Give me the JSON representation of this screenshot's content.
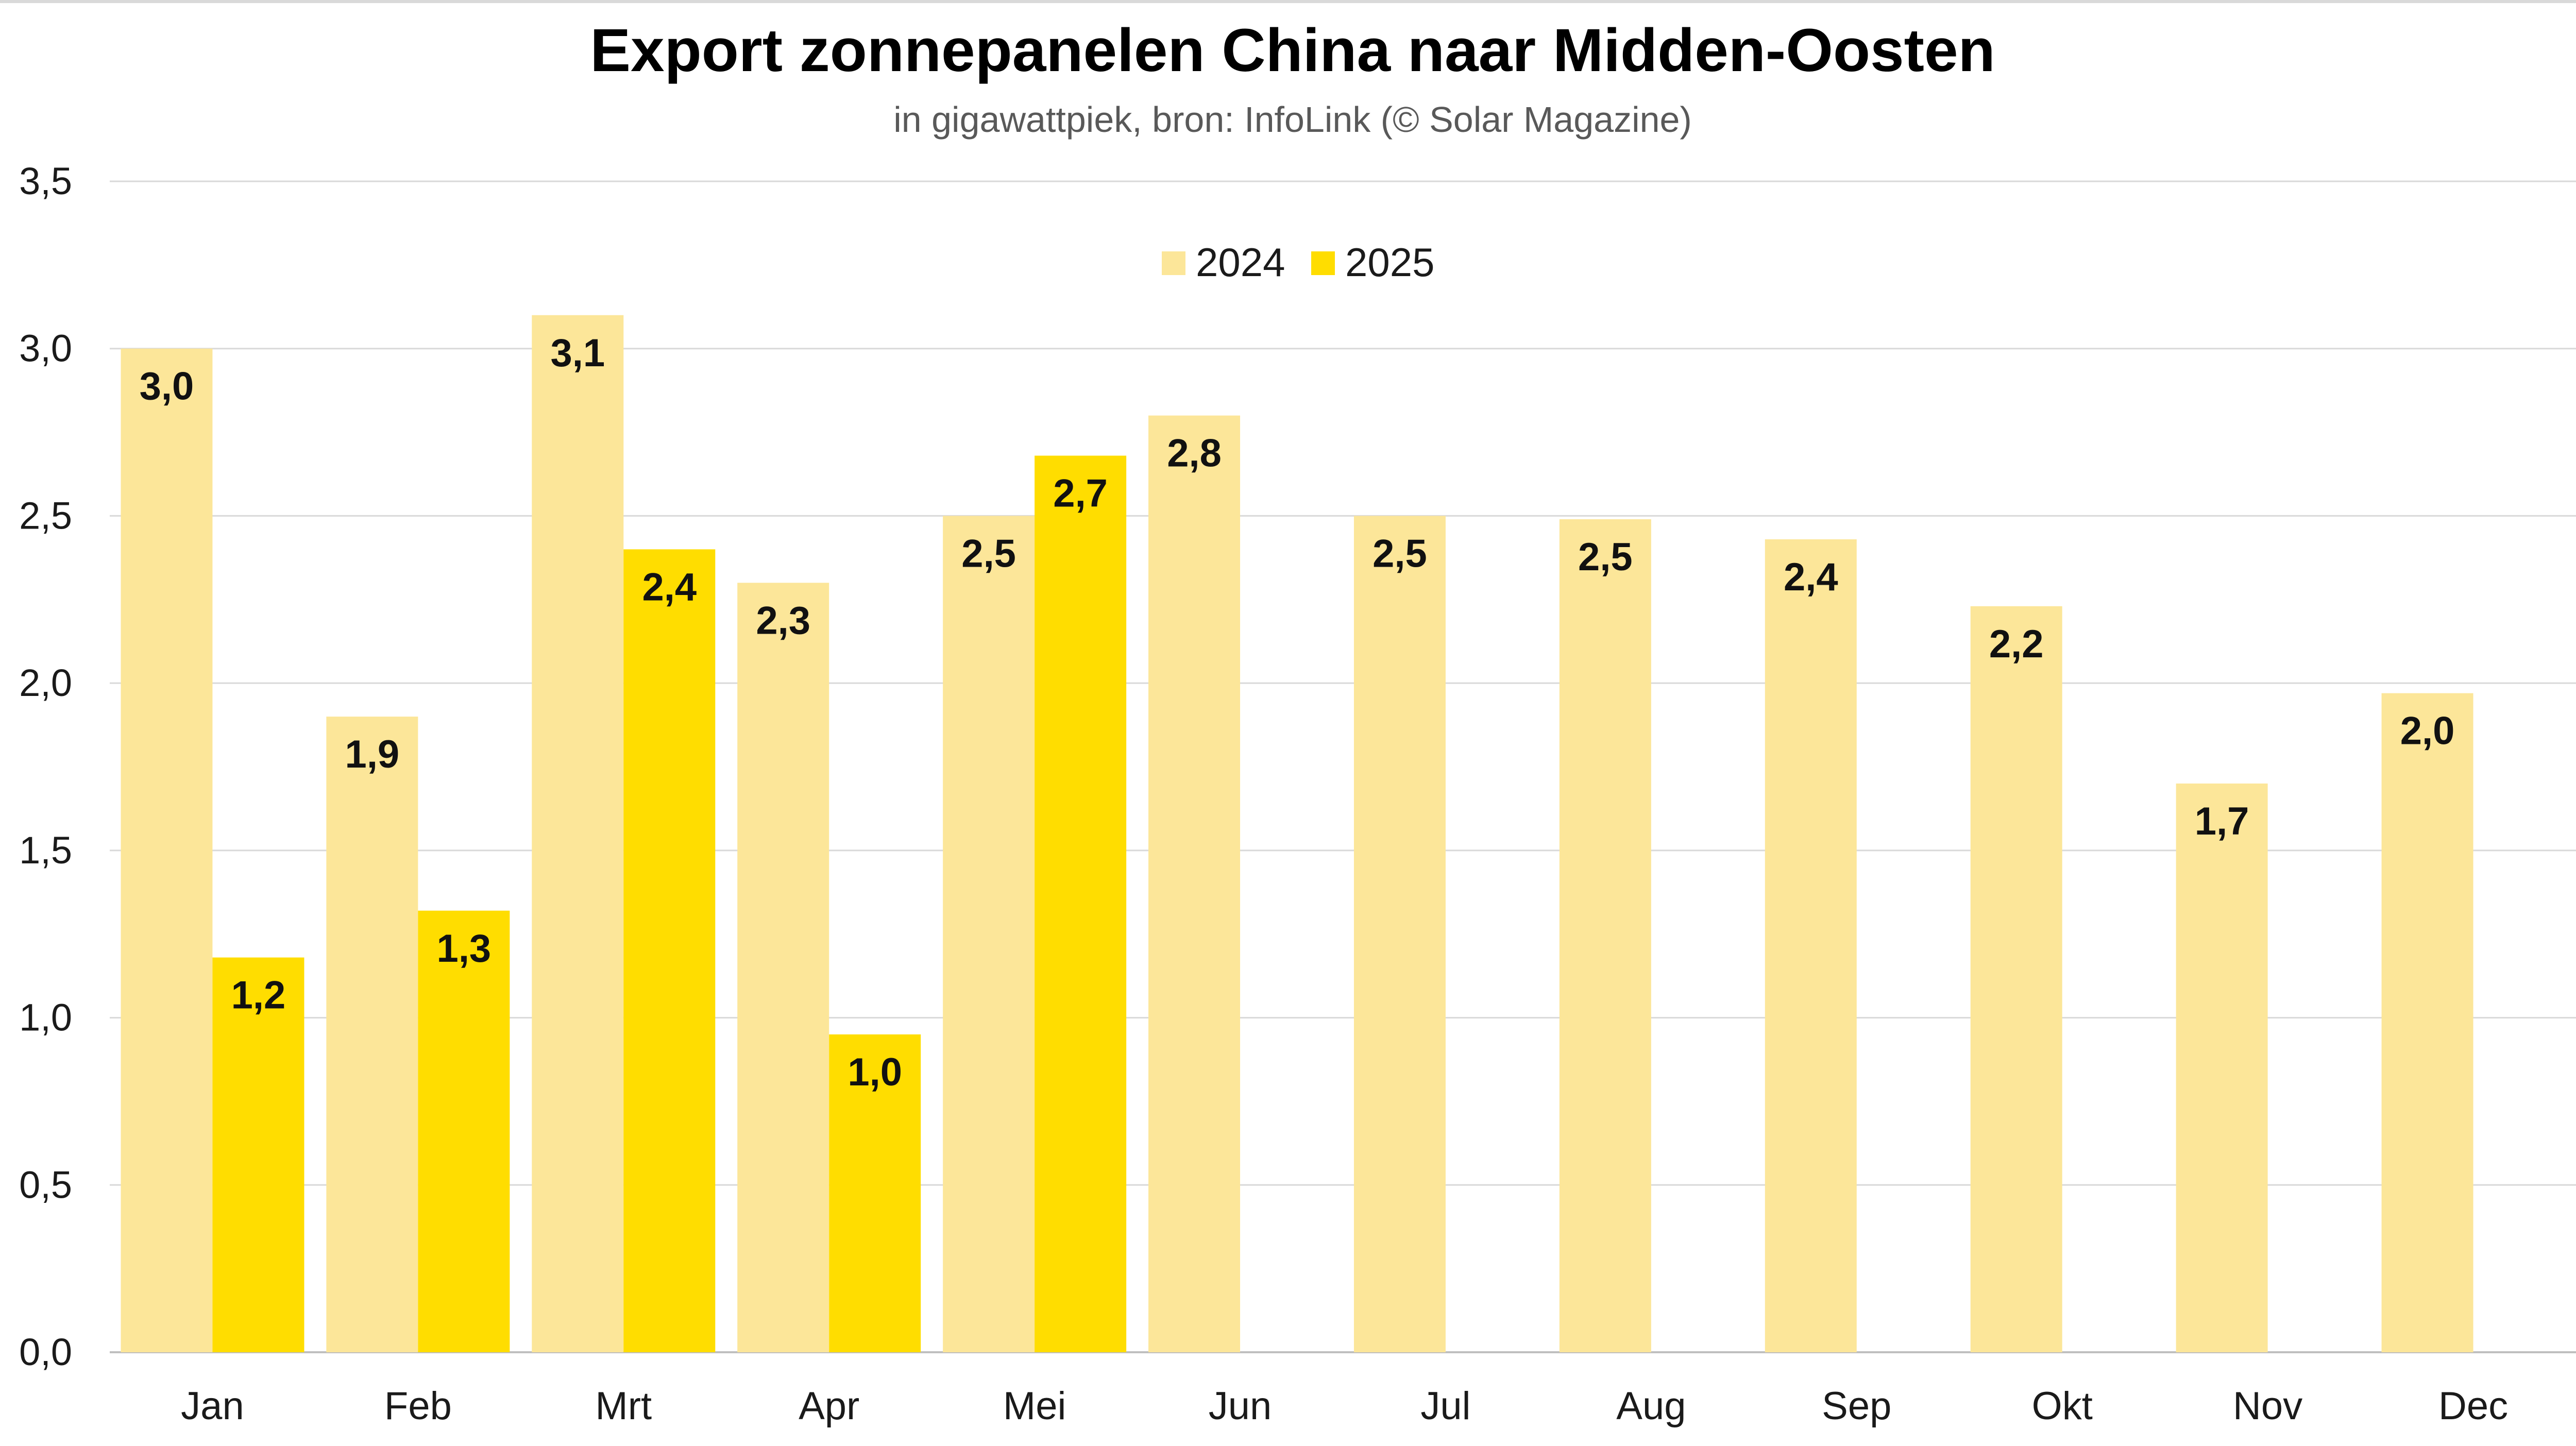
{
  "chart_data": {
    "type": "bar",
    "title": "Export zonnepanelen China naar Midden-Oosten",
    "subtitle": "in gigawattpiek, bron: InfoLink (© Solar Magazine)",
    "xlabel": "",
    "ylabel": "",
    "ylim": [
      0,
      3.5
    ],
    "yticks": [
      "0,0",
      "0,5",
      "1,0",
      "1,5",
      "2,0",
      "2,5",
      "3,0",
      "3,5"
    ],
    "ytick_values": [
      0,
      0.5,
      1.0,
      1.5,
      2.0,
      2.5,
      3.0,
      3.5
    ],
    "grid": true,
    "legend_position": "top-center",
    "categories": [
      "Jan",
      "Feb",
      "Mrt",
      "Apr",
      "Mei",
      "Jun",
      "Jul",
      "Aug",
      "Sep",
      "Okt",
      "Nov",
      "Dec"
    ],
    "series": [
      {
        "name": "2024",
        "color": "#fce699",
        "values": [
          3.0,
          1.9,
          3.1,
          2.3,
          2.5,
          2.8,
          2.5,
          2.49,
          2.43,
          2.23,
          1.7,
          1.97
        ],
        "labels": [
          "3,0",
          "1,9",
          "3,1",
          "2,3",
          "2,5",
          "2,8",
          "2,5",
          "2,5",
          "2,4",
          "2,2",
          "1,7",
          "2,0"
        ]
      },
      {
        "name": "2025",
        "color": "#ffdd00",
        "values": [
          1.18,
          1.32,
          2.4,
          0.95,
          2.68,
          null,
          null,
          null,
          null,
          null,
          null,
          null
        ],
        "labels": [
          "1,2",
          "1,3",
          "2,4",
          "1,0",
          "2,7",
          "",
          "",
          "",
          "",
          "",
          "",
          ""
        ]
      }
    ]
  }
}
